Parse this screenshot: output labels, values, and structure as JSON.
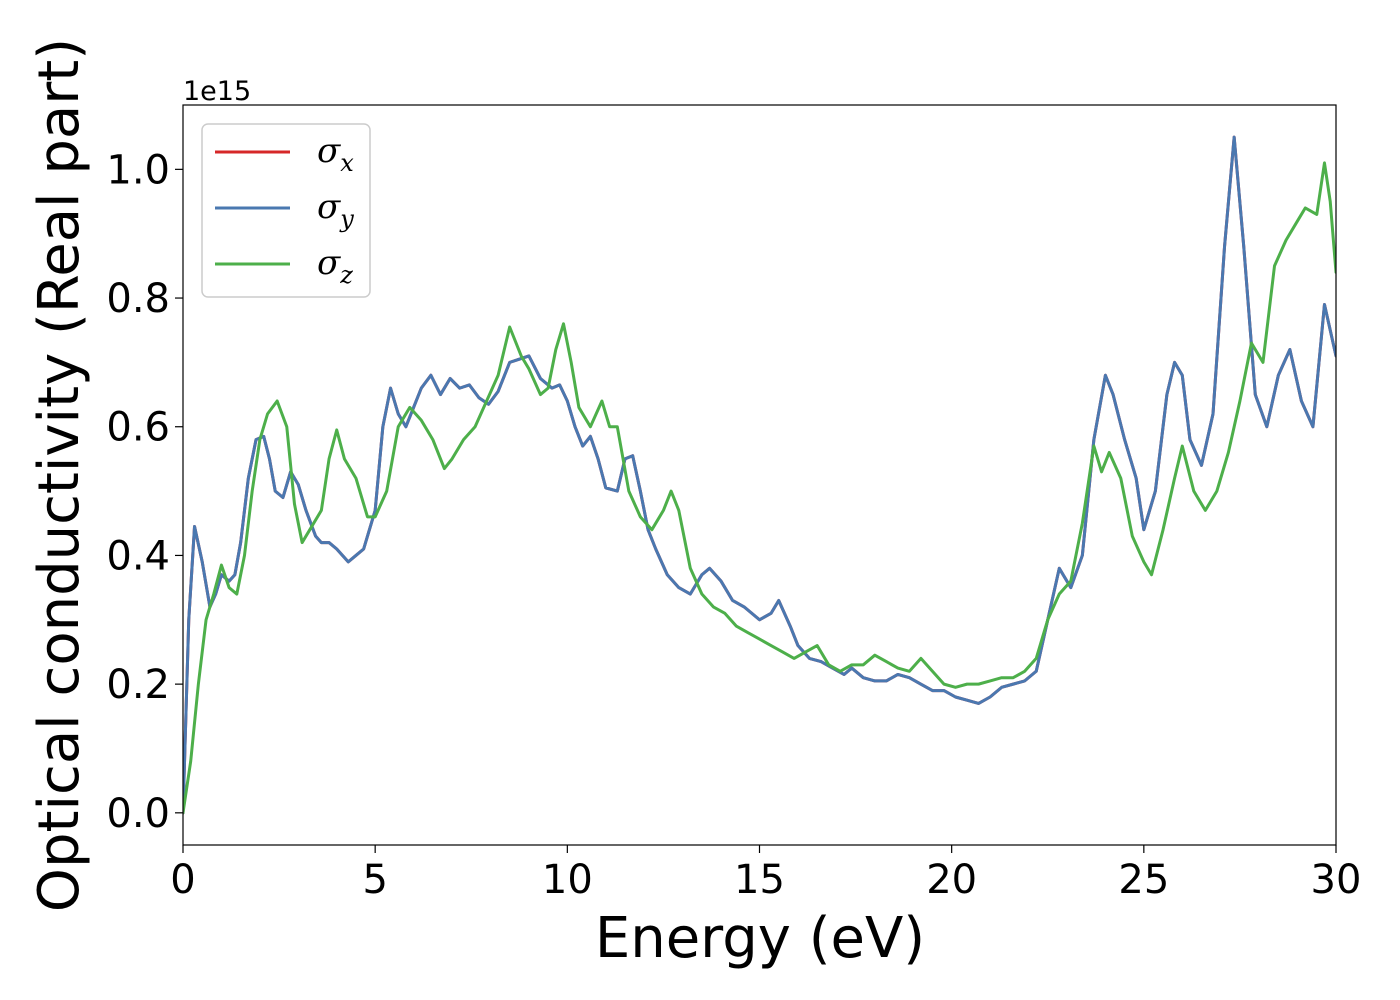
{
  "chart_data": {
    "type": "line",
    "title": "",
    "xlabel": "Energy (eV)",
    "ylabel": "Optical conductivity (Real part)",
    "y_offset_label": "1e15",
    "xlim": [
      0,
      30
    ],
    "ylim": [
      -0.05,
      1.1
    ],
    "x_ticks": [
      0,
      5,
      10,
      15,
      20,
      25,
      30
    ],
    "x_tick_labels": [
      "0",
      "5",
      "10",
      "15",
      "20",
      "25",
      "30"
    ],
    "y_ticks": [
      0.0,
      0.2,
      0.4,
      0.6,
      0.8,
      1.0
    ],
    "y_tick_labels": [
      "0.0",
      "0.2",
      "0.4",
      "0.6",
      "0.8",
      "1.0"
    ],
    "grid": false,
    "legend_position": "top-left",
    "series": [
      {
        "name": "σ_x",
        "symbol": "σ",
        "subscript": "x",
        "color": "#d62728",
        "x": [
          0,
          0.15,
          0.3,
          0.5,
          0.7,
          0.85,
          1.0,
          1.2,
          1.35,
          1.5,
          1.7,
          1.9,
          2.1,
          2.25,
          2.4,
          2.6,
          2.8,
          3.0,
          3.2,
          3.45,
          3.6,
          3.8,
          4.0,
          4.3,
          4.5,
          4.7,
          5.0,
          5.2,
          5.4,
          5.6,
          5.8,
          6.0,
          6.2,
          6.45,
          6.7,
          6.95,
          7.2,
          7.45,
          7.7,
          7.95,
          8.2,
          8.5,
          8.75,
          9.0,
          9.3,
          9.6,
          9.8,
          10.0,
          10.2,
          10.4,
          10.6,
          10.8,
          11.0,
          11.3,
          11.5,
          11.7,
          11.9,
          12.1,
          12.3,
          12.6,
          12.9,
          13.2,
          13.5,
          13.7,
          14.0,
          14.3,
          14.6,
          15.0,
          15.3,
          15.5,
          15.8,
          16.0,
          16.3,
          16.6,
          16.9,
          17.2,
          17.4,
          17.7,
          18.0,
          18.3,
          18.6,
          18.9,
          19.2,
          19.5,
          19.8,
          20.1,
          20.4,
          20.7,
          21.0,
          21.3,
          21.6,
          21.9,
          22.2,
          22.5,
          22.8,
          23.1,
          23.4,
          23.7,
          24.0,
          24.2,
          24.5,
          24.8,
          25.0,
          25.3,
          25.6,
          25.8,
          26.0,
          26.2,
          26.5,
          26.8,
          27.1,
          27.35,
          27.6,
          27.9,
          28.2,
          28.5,
          28.8,
          29.1,
          29.4,
          29.7,
          30.0
        ],
        "y": [
          0.0,
          0.3,
          0.445,
          0.39,
          0.32,
          0.34,
          0.37,
          0.36,
          0.37,
          0.42,
          0.52,
          0.58,
          0.585,
          0.55,
          0.5,
          0.49,
          0.53,
          0.51,
          0.47,
          0.43,
          0.42,
          0.42,
          0.41,
          0.39,
          0.4,
          0.41,
          0.47,
          0.6,
          0.66,
          0.62,
          0.6,
          0.63,
          0.66,
          0.68,
          0.65,
          0.675,
          0.66,
          0.665,
          0.645,
          0.635,
          0.655,
          0.7,
          0.705,
          0.71,
          0.675,
          0.66,
          0.665,
          0.64,
          0.6,
          0.57,
          0.585,
          0.55,
          0.505,
          0.5,
          0.55,
          0.555,
          0.5,
          0.44,
          0.41,
          0.37,
          0.35,
          0.34,
          0.37,
          0.38,
          0.36,
          0.33,
          0.32,
          0.3,
          0.31,
          0.33,
          0.29,
          0.26,
          0.24,
          0.235,
          0.225,
          0.215,
          0.225,
          0.21,
          0.205,
          0.205,
          0.215,
          0.21,
          0.2,
          0.19,
          0.19,
          0.18,
          0.175,
          0.17,
          0.18,
          0.195,
          0.2,
          0.205,
          0.22,
          0.3,
          0.38,
          0.35,
          0.4,
          0.58,
          0.68,
          0.65,
          0.58,
          0.52,
          0.44,
          0.5,
          0.65,
          0.7,
          0.68,
          0.58,
          0.54,
          0.62,
          0.88,
          1.05,
          0.88,
          0.65,
          0.6,
          0.68,
          0.72,
          0.64,
          0.6,
          0.79,
          0.71
        ]
      },
      {
        "name": "σ_y",
        "symbol": "σ",
        "subscript": "y",
        "color": "#4a78b0",
        "x": [
          0,
          0.15,
          0.3,
          0.5,
          0.7,
          0.85,
          1.0,
          1.2,
          1.35,
          1.5,
          1.7,
          1.9,
          2.1,
          2.25,
          2.4,
          2.6,
          2.8,
          3.0,
          3.2,
          3.45,
          3.6,
          3.8,
          4.0,
          4.3,
          4.5,
          4.7,
          5.0,
          5.2,
          5.4,
          5.6,
          5.8,
          6.0,
          6.2,
          6.45,
          6.7,
          6.95,
          7.2,
          7.45,
          7.7,
          7.95,
          8.2,
          8.5,
          8.75,
          9.0,
          9.3,
          9.6,
          9.8,
          10.0,
          10.2,
          10.4,
          10.6,
          10.8,
          11.0,
          11.3,
          11.5,
          11.7,
          11.9,
          12.1,
          12.3,
          12.6,
          12.9,
          13.2,
          13.5,
          13.7,
          14.0,
          14.3,
          14.6,
          15.0,
          15.3,
          15.5,
          15.8,
          16.0,
          16.3,
          16.6,
          16.9,
          17.2,
          17.4,
          17.7,
          18.0,
          18.3,
          18.6,
          18.9,
          19.2,
          19.5,
          19.8,
          20.1,
          20.4,
          20.7,
          21.0,
          21.3,
          21.6,
          21.9,
          22.2,
          22.5,
          22.8,
          23.1,
          23.4,
          23.7,
          24.0,
          24.2,
          24.5,
          24.8,
          25.0,
          25.3,
          25.6,
          25.8,
          26.0,
          26.2,
          26.5,
          26.8,
          27.1,
          27.35,
          27.6,
          27.9,
          28.2,
          28.5,
          28.8,
          29.1,
          29.4,
          29.7,
          30.0
        ],
        "y": [
          0.0,
          0.3,
          0.445,
          0.39,
          0.32,
          0.34,
          0.37,
          0.36,
          0.37,
          0.42,
          0.52,
          0.58,
          0.585,
          0.55,
          0.5,
          0.49,
          0.53,
          0.51,
          0.47,
          0.43,
          0.42,
          0.42,
          0.41,
          0.39,
          0.4,
          0.41,
          0.47,
          0.6,
          0.66,
          0.62,
          0.6,
          0.63,
          0.66,
          0.68,
          0.65,
          0.675,
          0.66,
          0.665,
          0.645,
          0.635,
          0.655,
          0.7,
          0.705,
          0.71,
          0.675,
          0.66,
          0.665,
          0.64,
          0.6,
          0.57,
          0.585,
          0.55,
          0.505,
          0.5,
          0.55,
          0.555,
          0.5,
          0.44,
          0.41,
          0.37,
          0.35,
          0.34,
          0.37,
          0.38,
          0.36,
          0.33,
          0.32,
          0.3,
          0.31,
          0.33,
          0.29,
          0.26,
          0.24,
          0.235,
          0.225,
          0.215,
          0.225,
          0.21,
          0.205,
          0.205,
          0.215,
          0.21,
          0.2,
          0.19,
          0.19,
          0.18,
          0.175,
          0.17,
          0.18,
          0.195,
          0.2,
          0.205,
          0.22,
          0.3,
          0.38,
          0.35,
          0.4,
          0.58,
          0.68,
          0.65,
          0.58,
          0.52,
          0.44,
          0.5,
          0.65,
          0.7,
          0.68,
          0.58,
          0.54,
          0.62,
          0.88,
          1.05,
          0.88,
          0.65,
          0.6,
          0.68,
          0.72,
          0.64,
          0.6,
          0.79,
          0.71
        ]
      },
      {
        "name": "σ_z",
        "symbol": "σ",
        "subscript": "z",
        "color": "#4daf4a",
        "x": [
          0,
          0.2,
          0.4,
          0.6,
          0.8,
          1.0,
          1.2,
          1.4,
          1.6,
          1.8,
          2.0,
          2.2,
          2.45,
          2.7,
          2.9,
          3.1,
          3.3,
          3.6,
          3.8,
          4.0,
          4.2,
          4.5,
          4.8,
          5.0,
          5.3,
          5.6,
          5.9,
          6.2,
          6.5,
          6.8,
          7.0,
          7.3,
          7.6,
          7.9,
          8.2,
          8.5,
          8.8,
          9.0,
          9.3,
          9.5,
          9.7,
          9.9,
          10.1,
          10.3,
          10.6,
          10.9,
          11.1,
          11.3,
          11.6,
          11.9,
          12.2,
          12.5,
          12.7,
          12.9,
          13.2,
          13.5,
          13.8,
          14.1,
          14.4,
          14.7,
          15.0,
          15.3,
          15.6,
          15.9,
          16.2,
          16.5,
          16.8,
          17.1,
          17.4,
          17.7,
          18.0,
          18.3,
          18.6,
          18.9,
          19.2,
          19.5,
          19.8,
          20.1,
          20.4,
          20.7,
          21.0,
          21.3,
          21.6,
          21.9,
          22.2,
          22.5,
          22.8,
          23.1,
          23.4,
          23.7,
          23.9,
          24.1,
          24.4,
          24.7,
          25.0,
          25.2,
          25.5,
          25.8,
          26.0,
          26.3,
          26.6,
          26.9,
          27.2,
          27.5,
          27.8,
          28.1,
          28.4,
          28.7,
          29.0,
          29.2,
          29.5,
          29.7,
          29.85,
          30.0
        ],
        "y": [
          0.0,
          0.08,
          0.2,
          0.3,
          0.34,
          0.385,
          0.35,
          0.34,
          0.4,
          0.5,
          0.58,
          0.62,
          0.64,
          0.6,
          0.48,
          0.42,
          0.44,
          0.47,
          0.55,
          0.595,
          0.55,
          0.52,
          0.46,
          0.46,
          0.5,
          0.6,
          0.63,
          0.61,
          0.58,
          0.535,
          0.55,
          0.58,
          0.6,
          0.64,
          0.68,
          0.755,
          0.71,
          0.69,
          0.65,
          0.66,
          0.72,
          0.76,
          0.7,
          0.63,
          0.6,
          0.64,
          0.6,
          0.6,
          0.5,
          0.46,
          0.44,
          0.47,
          0.5,
          0.47,
          0.38,
          0.34,
          0.32,
          0.31,
          0.29,
          0.28,
          0.27,
          0.26,
          0.25,
          0.24,
          0.25,
          0.26,
          0.23,
          0.22,
          0.23,
          0.23,
          0.245,
          0.235,
          0.225,
          0.22,
          0.24,
          0.22,
          0.2,
          0.195,
          0.2,
          0.2,
          0.205,
          0.21,
          0.21,
          0.22,
          0.24,
          0.3,
          0.34,
          0.36,
          0.45,
          0.57,
          0.53,
          0.56,
          0.52,
          0.43,
          0.39,
          0.37,
          0.44,
          0.52,
          0.57,
          0.5,
          0.47,
          0.5,
          0.56,
          0.64,
          0.73,
          0.7,
          0.85,
          0.89,
          0.92,
          0.94,
          0.93,
          1.01,
          0.95,
          0.84
        ]
      }
    ]
  }
}
